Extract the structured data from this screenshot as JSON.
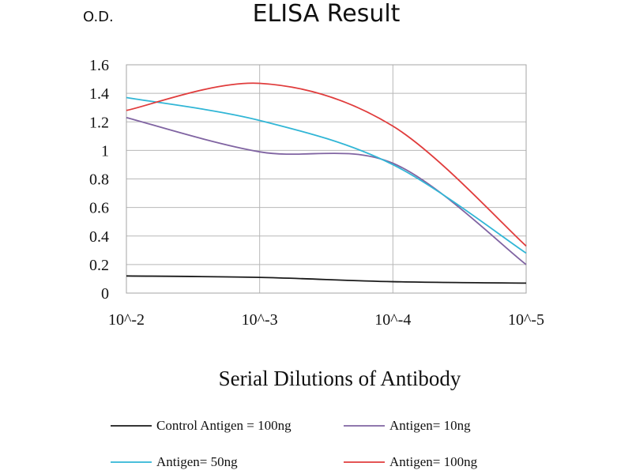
{
  "chart_data": {
    "type": "line",
    "title": "ELISA Result",
    "ylabel": "O.D.",
    "xlabel": "Serial Dilutions of Antibody",
    "categories": [
      "10^-2",
      "10^-3",
      "10^-4",
      "10^-5"
    ],
    "ylim": [
      0,
      1.6
    ],
    "yticks": [
      "0",
      "0.2",
      "0.4",
      "0.6",
      "0.8",
      "1",
      "1.2",
      "1.4",
      "1.6"
    ],
    "grid": true,
    "legend_position": "bottom",
    "series": [
      {
        "name": "Control Antigen = 100ng",
        "color": "#1a1a1a",
        "values": [
          0.12,
          0.11,
          0.08,
          0.07
        ]
      },
      {
        "name": "Antigen= 10ng",
        "color": "#8064a2",
        "values": [
          1.23,
          0.99,
          0.91,
          0.2
        ]
      },
      {
        "name": "Antigen= 50ng",
        "color": "#31b6d6",
        "values": [
          1.37,
          1.21,
          0.9,
          0.28
        ]
      },
      {
        "name": "Antigen= 100ng",
        "color": "#e03c3c",
        "values": [
          1.28,
          1.47,
          1.17,
          0.33
        ]
      }
    ]
  }
}
